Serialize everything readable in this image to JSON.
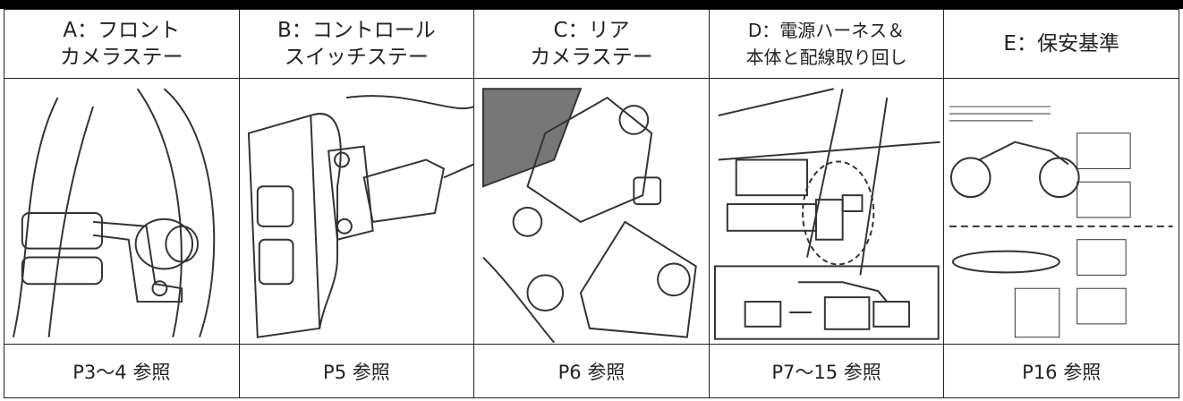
{
  "table": {
    "columns": [
      {
        "title": [
          "A：フロント",
          "カメラステー"
        ],
        "reference": "P3～4 参照"
      },
      {
        "title": [
          "B：コントロール",
          "スイッチステー"
        ],
        "reference": "P5 参照"
      },
      {
        "title": [
          "C：リア",
          "カメラステー"
        ],
        "reference": "P6 参照"
      },
      {
        "title": [
          "D：電源ハーネス＆",
          "本体と配線取り回し"
        ],
        "reference": "P7～15 参照"
      },
      {
        "title": [
          "E：保安基準"
        ],
        "reference": "P16 参照"
      }
    ]
  }
}
